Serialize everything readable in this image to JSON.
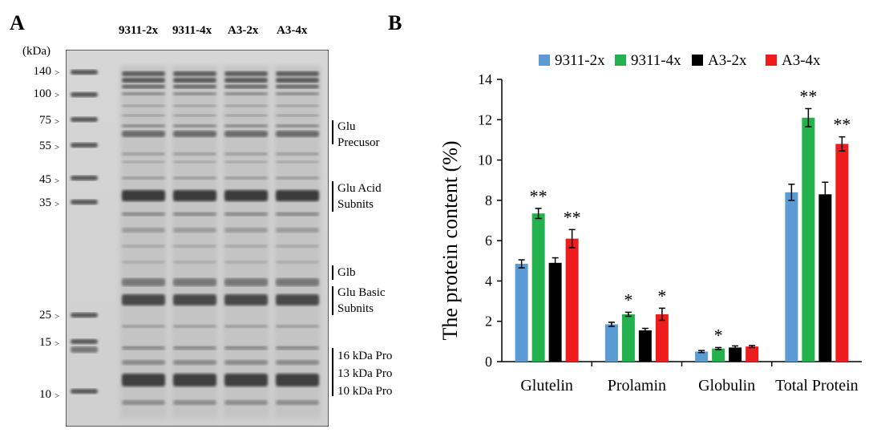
{
  "panelA": {
    "letter": "A",
    "unit": "(kDa)",
    "lanes": [
      "9311-2x",
      "9311-4x",
      "A3-2x",
      "A3-4x"
    ],
    "markers": [
      "140",
      "100",
      "75",
      "55",
      "45",
      "35",
      "25",
      "15",
      "10"
    ],
    "band_labels": [
      [
        "Glu",
        "Precusor"
      ],
      [
        "Glu Acid",
        "Subnits"
      ],
      [
        "Glb"
      ],
      [
        "Glu Basic",
        "Subnits"
      ],
      [
        "16 kDa Pro",
        "13 kDa Pro",
        "10 kDa Pro"
      ]
    ]
  },
  "panelB": {
    "letter": "B"
  },
  "chart_data": {
    "type": "bar",
    "categories": [
      "Glutelin",
      "Prolamin",
      "Globulin",
      "Total Protein"
    ],
    "series": [
      {
        "name": "9311-2x",
        "color": "#5b9bd5",
        "values": [
          4.85,
          1.85,
          0.5,
          8.4
        ],
        "errors": [
          0.2,
          0.1,
          0.05,
          0.4
        ],
        "stars": [
          "",
          "",
          "",
          ""
        ]
      },
      {
        "name": "9311-4x",
        "color": "#22b14c",
        "values": [
          7.35,
          2.35,
          0.65,
          12.1
        ],
        "errors": [
          0.25,
          0.1,
          0.05,
          0.45
        ],
        "stars": [
          "**",
          "*",
          "*",
          "**"
        ]
      },
      {
        "name": "A3-2x",
        "color": "#000000",
        "values": [
          4.9,
          1.55,
          0.7,
          8.3
        ],
        "errors": [
          0.25,
          0.1,
          0.08,
          0.6
        ],
        "stars": [
          "",
          "",
          "",
          ""
        ]
      },
      {
        "name": "A3-4x",
        "color": "#ee1c1c",
        "values": [
          6.1,
          2.35,
          0.75,
          10.8
        ],
        "errors": [
          0.45,
          0.3,
          0.05,
          0.35
        ],
        "stars": [
          "**",
          "*",
          "",
          "**"
        ]
      }
    ],
    "ylabel": "The protein content (%)",
    "xlabel": "",
    "ylim": [
      0,
      14
    ],
    "yticks": [
      "0",
      "2",
      "4",
      "6",
      "8",
      "10",
      "12",
      "14"
    ],
    "legend_position": "top"
  }
}
